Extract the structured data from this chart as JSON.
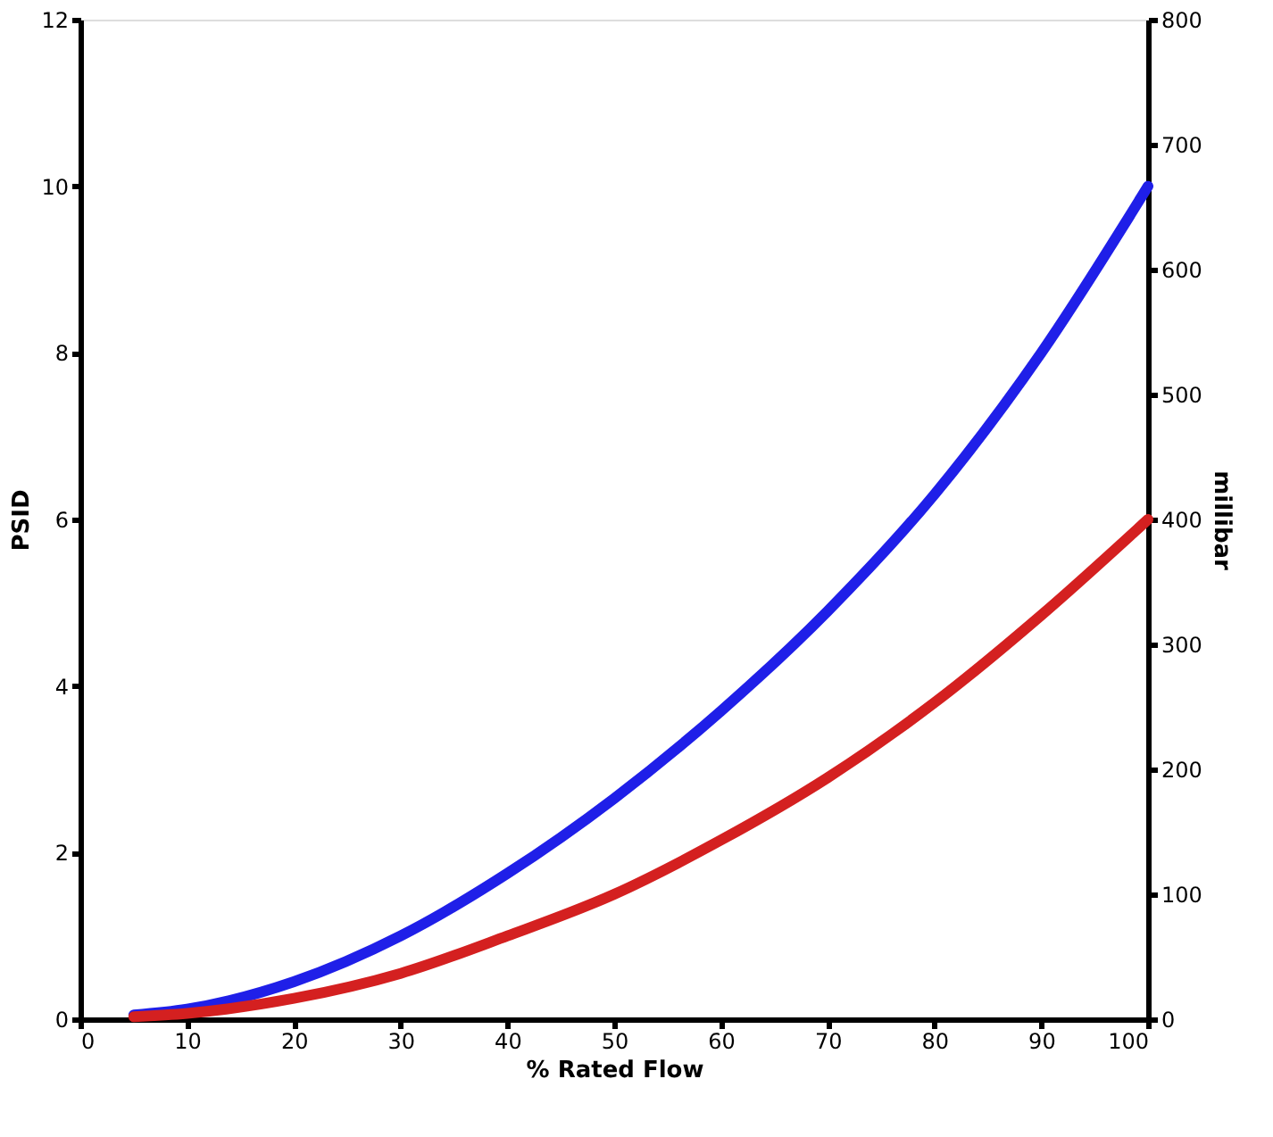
{
  "chart_data": {
    "type": "line",
    "xlabel": "% Rated Flow",
    "ylabel": "PSID",
    "y2label": "millibar",
    "x": [
      5,
      10,
      20,
      30,
      40,
      50,
      60,
      70,
      80,
      90,
      100
    ],
    "series": [
      {
        "color": "#1f1fe8",
        "values": [
          0.05,
          0.12,
          0.45,
          1.0,
          1.75,
          2.65,
          3.7,
          4.9,
          6.3,
          8.0,
          10
        ]
      },
      {
        "color": "#d42020",
        "values": [
          0.03,
          0.07,
          0.25,
          0.55,
          1.0,
          1.5,
          2.15,
          2.9,
          3.8,
          4.85,
          6.0
        ]
      }
    ],
    "xlim": [
      0,
      100
    ],
    "xticks": [
      0,
      10,
      20,
      30,
      40,
      50,
      60,
      70,
      80,
      90,
      100
    ],
    "ylim": [
      0,
      12
    ],
    "yticks": [
      0,
      2,
      4,
      6,
      8,
      10,
      12
    ],
    "y2lim": [
      0,
      800
    ],
    "y2ticks": [
      0,
      100,
      200,
      300,
      400,
      500,
      600,
      700,
      800
    ],
    "grid": false,
    "legend": false,
    "line_style": "solid",
    "marker": "none"
  }
}
